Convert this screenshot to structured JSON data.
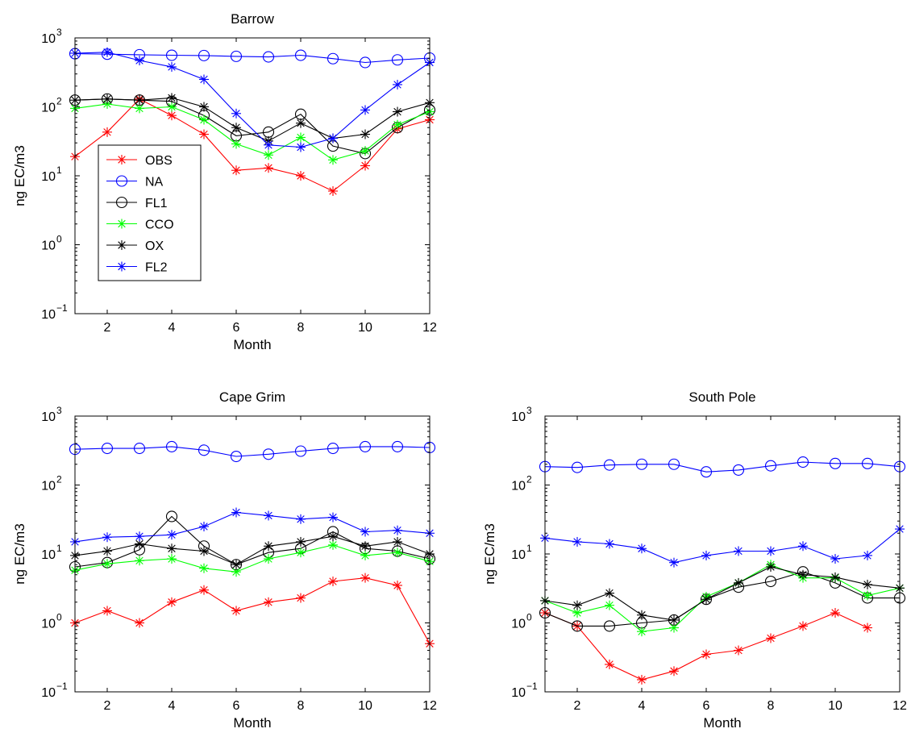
{
  "chart_data": [
    {
      "type": "line",
      "title": "Barrow",
      "xlabel": "Month",
      "ylabel": "ng EC/m3",
      "yscale": "log",
      "xlim": [
        1,
        12
      ],
      "ylim": [
        0.1,
        1000
      ],
      "xticks": [
        2,
        4,
        6,
        8,
        10,
        12
      ],
      "yticks": [
        0.1,
        1,
        10,
        100,
        1000
      ],
      "yticklabels": [
        {
          "base": "10",
          "exp": "−1"
        },
        {
          "base": "10",
          "exp": "0"
        },
        {
          "base": "10",
          "exp": "1"
        },
        {
          "base": "10",
          "exp": "2"
        },
        {
          "base": "10",
          "exp": "3"
        }
      ],
      "x": [
        1,
        2,
        3,
        4,
        5,
        6,
        7,
        8,
        9,
        10,
        11,
        12
      ],
      "grid": false,
      "legend": {
        "placement": "upper-left",
        "entries": [
          "OBS",
          "NA",
          "FL1",
          "CCO",
          "OX",
          "FL2"
        ]
      },
      "series": [
        {
          "name": "OBS",
          "color": "#ff0000",
          "marker": "asterisk",
          "values": [
            19,
            43,
            130,
            75,
            40,
            12,
            13,
            10,
            6,
            14,
            48,
            65
          ]
        },
        {
          "name": "NA",
          "color": "#0000ff",
          "marker": "circle",
          "values": [
            590,
            580,
            570,
            560,
            555,
            540,
            530,
            560,
            500,
            440,
            480,
            510
          ]
        },
        {
          "name": "FL1",
          "color": "#000000",
          "marker": "circle",
          "values": [
            125,
            130,
            125,
            120,
            75,
            38,
            43,
            78,
            27,
            21,
            50,
            90
          ]
        },
        {
          "name": "CCO",
          "color": "#00ff00",
          "marker": "asterisk",
          "values": [
            95,
            110,
            95,
            100,
            65,
            29,
            20,
            36,
            17,
            23,
            55,
            85
          ]
        },
        {
          "name": "OX",
          "color": "#000000",
          "marker": "asterisk",
          "values": [
            125,
            130,
            125,
            135,
            100,
            50,
            32,
            58,
            35,
            40,
            85,
            115
          ]
        },
        {
          "name": "FL2",
          "color": "#0000ff",
          "marker": "asterisk",
          "values": [
            600,
            620,
            470,
            380,
            250,
            80,
            28,
            26,
            35,
            90,
            210,
            440
          ]
        }
      ]
    },
    {
      "type": "line",
      "title": "Cape Grim",
      "xlabel": "Month",
      "ylabel": "ng EC/m3",
      "yscale": "log",
      "xlim": [
        1,
        12
      ],
      "ylim": [
        0.1,
        1000
      ],
      "xticks": [
        2,
        4,
        6,
        8,
        10,
        12
      ],
      "yticks": [
        0.1,
        1,
        10,
        100,
        1000
      ],
      "yticklabels": [
        {
          "base": "10",
          "exp": "−1"
        },
        {
          "base": "10",
          "exp": "0"
        },
        {
          "base": "10",
          "exp": "1"
        },
        {
          "base": "10",
          "exp": "2"
        },
        {
          "base": "10",
          "exp": "3"
        }
      ],
      "x": [
        1,
        2,
        3,
        4,
        5,
        6,
        7,
        8,
        9,
        10,
        11,
        12
      ],
      "grid": false,
      "series": [
        {
          "name": "OBS",
          "color": "#ff0000",
          "marker": "asterisk",
          "values": [
            1.0,
            1.5,
            1.0,
            2.0,
            3.0,
            1.5,
            2.0,
            2.3,
            4.0,
            4.5,
            3.5,
            0.5
          ]
        },
        {
          "name": "NA",
          "color": "#0000ff",
          "marker": "circle",
          "values": [
            330,
            340,
            340,
            360,
            320,
            260,
            280,
            310,
            340,
            360,
            360,
            350
          ]
        },
        {
          "name": "FL1",
          "color": "#000000",
          "marker": "circle",
          "values": [
            6.5,
            7.5,
            11.5,
            35,
            13,
            7,
            10.5,
            12,
            21,
            12,
            11,
            8.5
          ]
        },
        {
          "name": "CCO",
          "color": "#00ff00",
          "marker": "asterisk",
          "values": [
            5.8,
            7.2,
            8,
            8.5,
            6.2,
            5.5,
            8.5,
            10.5,
            13.5,
            9.5,
            10.5,
            7.8
          ]
        },
        {
          "name": "OX",
          "color": "#000000",
          "marker": "asterisk",
          "values": [
            9.5,
            11,
            14,
            12,
            11,
            7,
            13,
            15,
            18,
            13,
            15,
            10
          ]
        },
        {
          "name": "FL2",
          "color": "#0000ff",
          "marker": "asterisk",
          "values": [
            15,
            17.5,
            18,
            19,
            25,
            40,
            36,
            32,
            34,
            21,
            22,
            20
          ]
        }
      ]
    },
    {
      "type": "line",
      "title": "South Pole",
      "xlabel": "Month",
      "ylabel": "ng EC/m3",
      "yscale": "log",
      "xlim": [
        1,
        12
      ],
      "ylim": [
        0.1,
        1000
      ],
      "xticks": [
        2,
        4,
        6,
        8,
        10,
        12
      ],
      "yticks": [
        0.1,
        1,
        10,
        100,
        1000
      ],
      "yticklabels": [
        {
          "base": "10",
          "exp": "−1"
        },
        {
          "base": "10",
          "exp": "0"
        },
        {
          "base": "10",
          "exp": "1"
        },
        {
          "base": "10",
          "exp": "2"
        },
        {
          "base": "10",
          "exp": "3"
        }
      ],
      "x": [
        1,
        2,
        3,
        4,
        5,
        6,
        7,
        8,
        9,
        10,
        11,
        12
      ],
      "grid": false,
      "series": [
        {
          "name": "OBS",
          "color": "#ff0000",
          "marker": "asterisk",
          "values": [
            1.4,
            0.9,
            0.25,
            0.15,
            0.2,
            0.35,
            0.4,
            0.6,
            0.9,
            1.4,
            0.85,
            null
          ]
        },
        {
          "name": "NA",
          "color": "#0000ff",
          "marker": "circle",
          "values": [
            185,
            180,
            195,
            200,
            200,
            155,
            165,
            190,
            215,
            205,
            205,
            185
          ]
        },
        {
          "name": "FL1",
          "color": "#000000",
          "marker": "circle",
          "values": [
            1.4,
            0.9,
            0.9,
            1.0,
            1.1,
            2.2,
            3.3,
            4.0,
            5.5,
            3.8,
            2.3,
            2.3
          ]
        },
        {
          "name": "CCO",
          "color": "#00ff00",
          "marker": "asterisk",
          "values": [
            2.1,
            1.4,
            1.8,
            0.75,
            0.85,
            2.4,
            3.8,
            7.0,
            4.5,
            4.5,
            2.5,
            3.2
          ]
        },
        {
          "name": "OX",
          "color": "#000000",
          "marker": "asterisk",
          "values": [
            2.1,
            1.8,
            2.7,
            1.3,
            1.1,
            2.2,
            3.8,
            6.5,
            5.0,
            4.6,
            3.6,
            3.2
          ]
        },
        {
          "name": "FL2",
          "color": "#0000ff",
          "marker": "asterisk",
          "values": [
            17,
            15,
            14,
            12,
            7.5,
            9.5,
            11,
            11,
            13,
            8.5,
            9.5,
            23
          ]
        }
      ]
    }
  ]
}
